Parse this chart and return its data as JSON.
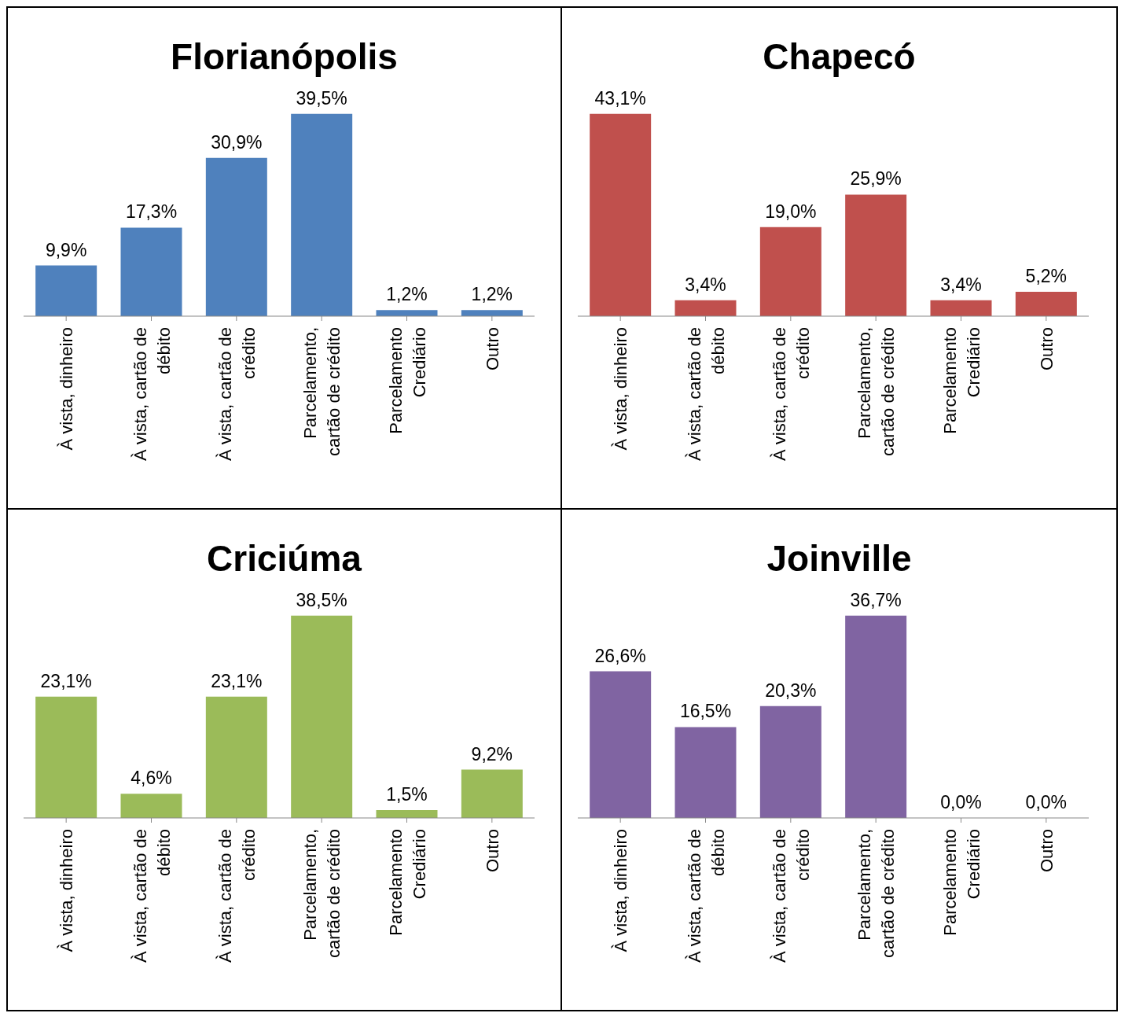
{
  "chart_data": [
    {
      "type": "bar",
      "title": "Florianópolis",
      "categories": [
        "À vista, dinheiro",
        "À vista, cartão de débito",
        "À vista, cartão de crédito",
        "Parcelamento, cartão de crédito",
        "Parcelamento Crediário",
        "Outro"
      ],
      "values": [
        9.9,
        17.3,
        30.9,
        39.5,
        1.2,
        1.2
      ],
      "value_labels": [
        "9,9%",
        "17,3%",
        "30,9%",
        "39,5%",
        "1,2%",
        "1,2%"
      ],
      "color": "#4f81bd"
    },
    {
      "type": "bar",
      "title": "Chapecó",
      "categories": [
        "À vista, dinheiro",
        "À vista, cartão de débito",
        "À vista, cartão de crédito",
        "Parcelamento, cartão de crédito",
        "Parcelamento Crediário",
        "Outro"
      ],
      "values": [
        43.1,
        3.4,
        19.0,
        25.9,
        3.4,
        5.2
      ],
      "value_labels": [
        "43,1%",
        "3,4%",
        "19,0%",
        "25,9%",
        "3,4%",
        "5,2%"
      ],
      "color": "#c0504d"
    },
    {
      "type": "bar",
      "title": "Criciúma",
      "categories": [
        "À vista, dinheiro",
        "À vista, cartão de débito",
        "À vista, cartão de crédito",
        "Parcelamento, cartão de crédito",
        "Parcelamento Crediário",
        "Outro"
      ],
      "values": [
        23.1,
        4.6,
        23.1,
        38.5,
        1.5,
        9.2
      ],
      "value_labels": [
        "23,1%",
        "4,6%",
        "23,1%",
        "38,5%",
        "1,5%",
        "9,2%"
      ],
      "color": "#9bbb59"
    },
    {
      "type": "bar",
      "title": "Joinville",
      "categories": [
        "À vista, dinheiro",
        "À vista, cartão de débito",
        "À vista, cartão de crédito",
        "Parcelamento, cartão de crédito",
        "Parcelamento Crediário",
        "Outro"
      ],
      "values": [
        26.6,
        16.5,
        20.3,
        36.7,
        0.0,
        0.0
      ],
      "value_labels": [
        "26,6%",
        "16,5%",
        "20,3%",
        "36,7%",
        "0,0%",
        "0,0%"
      ],
      "color": "#8064a2"
    }
  ]
}
